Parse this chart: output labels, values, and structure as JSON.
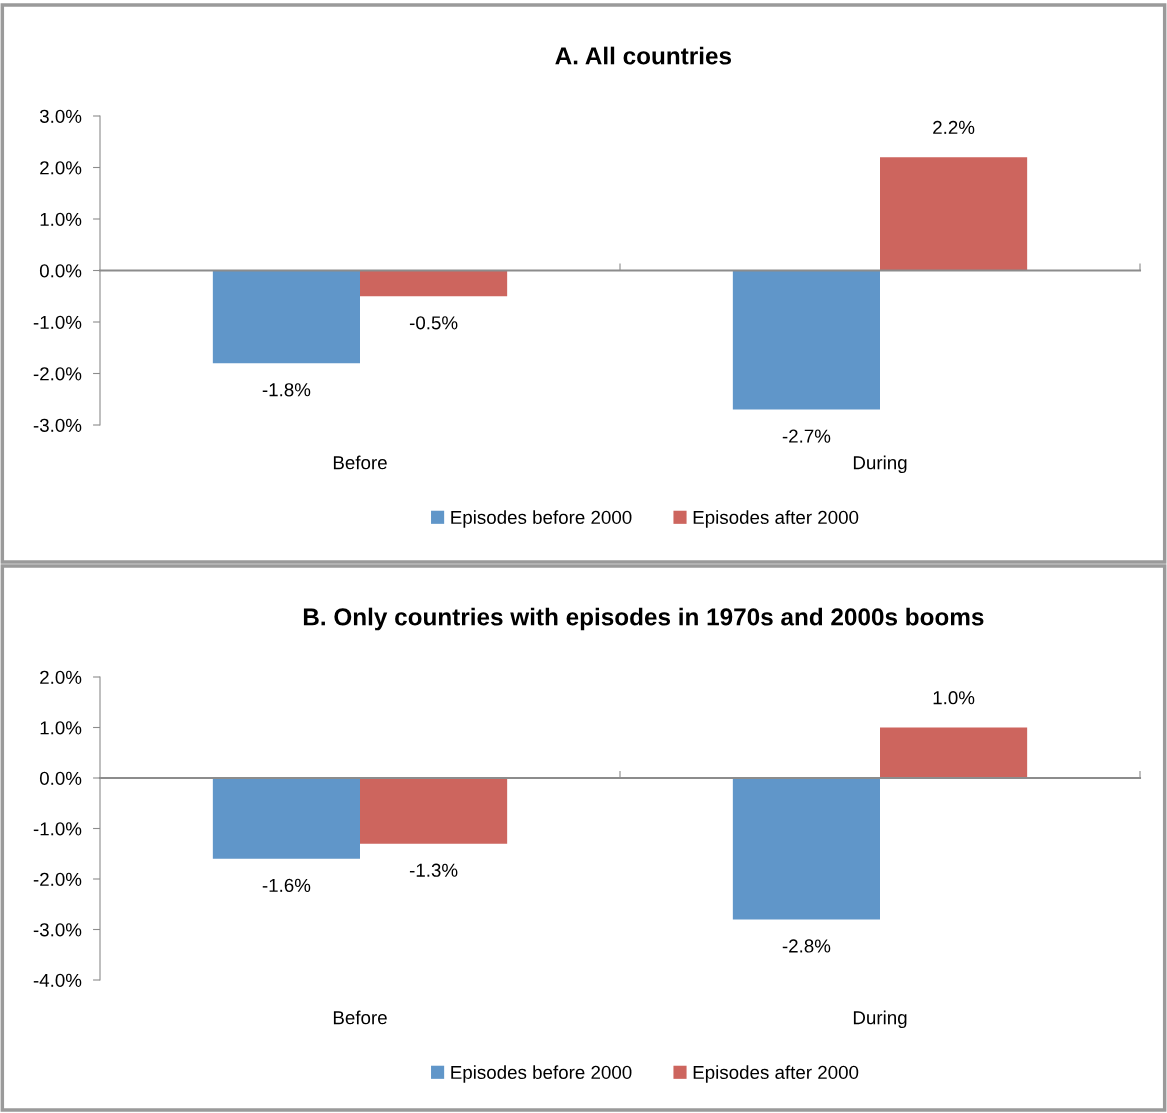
{
  "chart_data": [
    {
      "type": "bar",
      "title": "A. All countries",
      "categories": [
        "Before",
        "During"
      ],
      "series": [
        {
          "name": "Episodes before 2000",
          "color": "#6096c9",
          "values": [
            -1.8,
            -2.7
          ],
          "value_labels": [
            "-1.8%",
            "-2.7%"
          ]
        },
        {
          "name": "Episodes after 2000",
          "color": "#cd655e",
          "values": [
            -0.5,
            2.2
          ],
          "value_labels": [
            "-0.5%",
            "2.2%"
          ]
        }
      ],
      "ylim": [
        -3,
        3
      ],
      "yticks": [
        {
          "value": 3,
          "label": "3.0%"
        },
        {
          "value": 2,
          "label": "2.0%"
        },
        {
          "value": 1,
          "label": "1.0%"
        },
        {
          "value": 0,
          "label": "0.0%"
        },
        {
          "value": -1,
          "label": "-1.0%"
        },
        {
          "value": -2,
          "label": "-2.0%"
        },
        {
          "value": -3,
          "label": "-3.0%"
        }
      ],
      "legend": "bottom"
    },
    {
      "type": "bar",
      "title": "B. Only countries with episodes in 1970s and 2000s booms",
      "categories": [
        "Before",
        "During"
      ],
      "series": [
        {
          "name": "Episodes before 2000",
          "color": "#6096c9",
          "values": [
            -1.6,
            -2.8
          ],
          "value_labels": [
            "-1.6%",
            "-2.8%"
          ]
        },
        {
          "name": "Episodes after 2000",
          "color": "#cd655e",
          "values": [
            -1.3,
            1.0
          ],
          "value_labels": [
            "-1.3%",
            "1.0%"
          ]
        }
      ],
      "ylim": [
        -4,
        2
      ],
      "yticks": [
        {
          "value": 2,
          "label": "2.0%"
        },
        {
          "value": 1,
          "label": "1.0%"
        },
        {
          "value": 0,
          "label": "0.0%"
        },
        {
          "value": -1,
          "label": "-1.0%"
        },
        {
          "value": -2,
          "label": "-2.0%"
        },
        {
          "value": -3,
          "label": "-3.0%"
        },
        {
          "value": -4,
          "label": "-4.0%"
        }
      ],
      "legend": "bottom"
    }
  ]
}
